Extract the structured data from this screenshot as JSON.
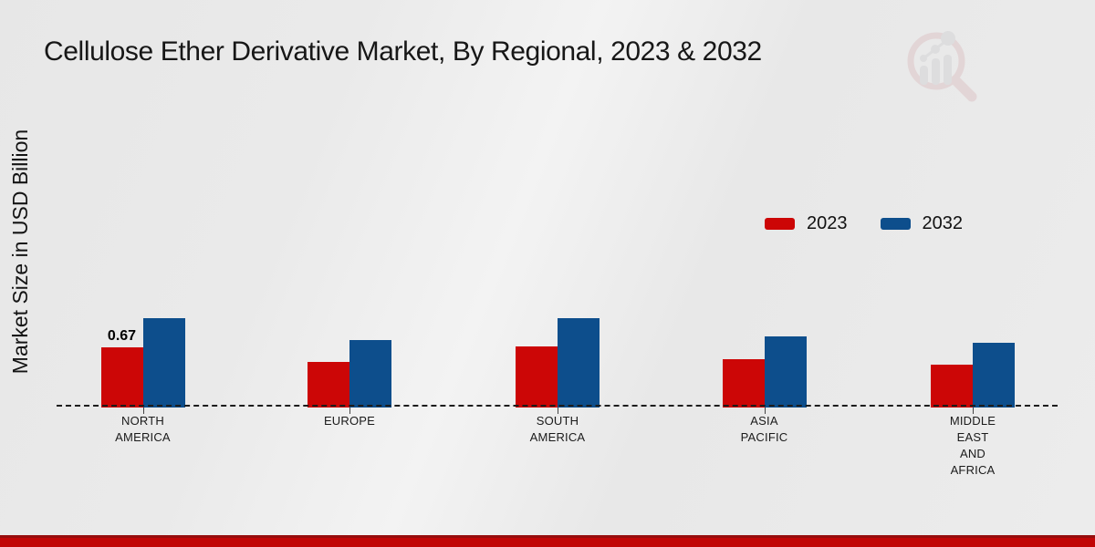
{
  "page": {
    "title": "Cellulose Ether Derivative Market, By Regional, 2023 & 2032"
  },
  "y_axis": {
    "label": "Market Size in USD Billion"
  },
  "legend": {
    "items": [
      {
        "label": "2023",
        "color": "#cc0606"
      },
      {
        "label": "2032",
        "color": "#0d4e8c"
      }
    ]
  },
  "chart_data": {
    "type": "bar",
    "title": "Cellulose Ether Derivative Market, By Regional, 2023 & 2032",
    "xlabel": "",
    "ylabel": "Market Size in USD Billion",
    "categories": [
      "NORTH AMERICA",
      "EUROPE",
      "SOUTH AMERICA",
      "ASIA PACIFIC",
      "MIDDLE EAST AND AFRICA"
    ],
    "series": [
      {
        "name": "2023",
        "color": "#cc0606",
        "values": [
          0.67,
          0.5,
          0.68,
          0.54,
          0.47
        ]
      },
      {
        "name": "2032",
        "color": "#0d4e8c",
        "values": [
          1.0,
          0.75,
          1.0,
          0.79,
          0.72
        ]
      }
    ],
    "annotations": [
      {
        "category_index": 0,
        "series_index": 0,
        "text": "0.67"
      }
    ],
    "ylim": [
      0,
      1.2
    ],
    "gridlines": false,
    "baseline_style": "dashed",
    "legend_position": "right-middle"
  },
  "footer": {
    "band_color": "#c10505",
    "band_top_color": "#960d0d"
  },
  "watermark": {
    "name": "market-research-magnifier-logo",
    "ring_color": "#c9878d",
    "bars_color": "#aeaeb4"
  }
}
